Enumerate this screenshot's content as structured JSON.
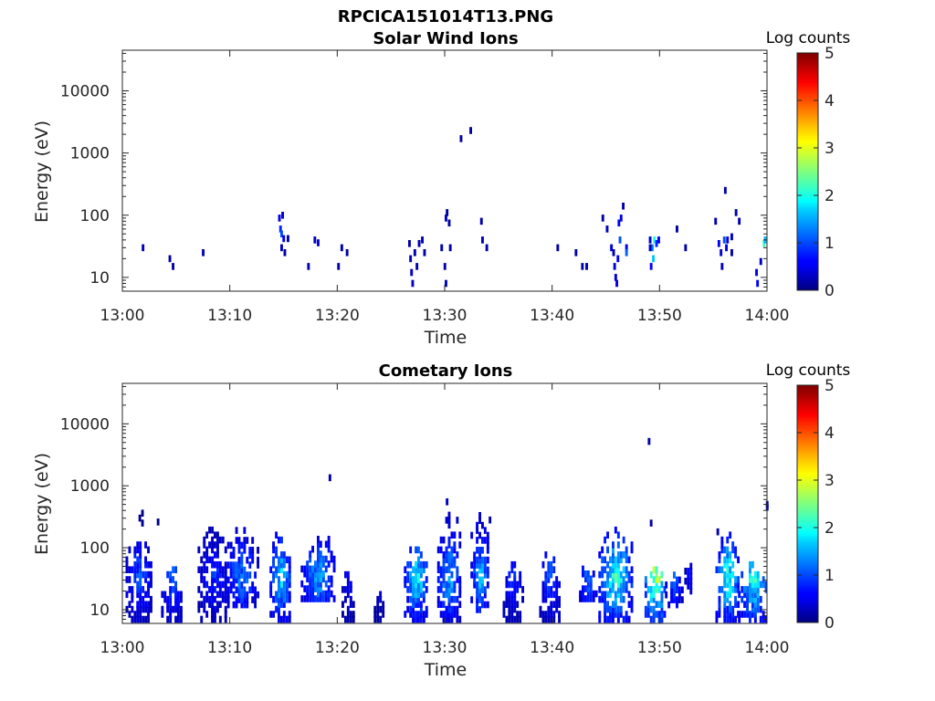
{
  "figure": {
    "title": "RPCICA151014T13.PNG"
  },
  "chart_data": [
    {
      "type": "heatmap",
      "title": "Solar Wind Ions",
      "xlabel": "Time",
      "ylabel": "Energy (eV)",
      "x_ticks": [
        "13:00",
        "13:10",
        "13:20",
        "13:30",
        "13:40",
        "13:50",
        "14:00"
      ],
      "y_ticks": [
        "10",
        "100",
        "1000",
        "10000"
      ],
      "yscale": "log",
      "ylim": [
        6,
        45000
      ],
      "xlim_minutes": [
        0,
        60
      ],
      "colorbar": {
        "label": "Log counts",
        "ticks": [
          "0",
          "1",
          "2",
          "3",
          "4",
          "5"
        ],
        "range": [
          0,
          5
        ],
        "colormap": "jet"
      },
      "points": [
        [
          1.8,
          30,
          0.3
        ],
        [
          4.3,
          20,
          0.2
        ],
        [
          4.6,
          15,
          0.2
        ],
        [
          7.4,
          25,
          0.3
        ],
        [
          14.5,
          90,
          0.5
        ],
        [
          14.6,
          60,
          0.8
        ],
        [
          14.7,
          50,
          1.0
        ],
        [
          14.8,
          100,
          0.4
        ],
        [
          14.9,
          42,
          0.5
        ],
        [
          14.7,
          30,
          0.3
        ],
        [
          15.0,
          25,
          0.2
        ],
        [
          15.3,
          42,
          0.2
        ],
        [
          17.2,
          15,
          0.2
        ],
        [
          17.8,
          40,
          0.3
        ],
        [
          18.1,
          36,
          0.4
        ],
        [
          20.0,
          15,
          0.2
        ],
        [
          20.3,
          30,
          0.2
        ],
        [
          20.8,
          25,
          0.2
        ],
        [
          26.6,
          35,
          0.2
        ],
        [
          26.7,
          20,
          0.3
        ],
        [
          26.8,
          12,
          0.3
        ],
        [
          26.9,
          8,
          0.3
        ],
        [
          27.1,
          25,
          0.2
        ],
        [
          27.3,
          15,
          0.2
        ],
        [
          27.5,
          35,
          0.2
        ],
        [
          27.8,
          40,
          0.3
        ],
        [
          28.0,
          25,
          0.2
        ],
        [
          29.6,
          30,
          0.2
        ],
        [
          29.9,
          15,
          0.2
        ],
        [
          30.0,
          8,
          0.3
        ],
        [
          30.0,
          90,
          0.3
        ],
        [
          30.1,
          110,
          0.2
        ],
        [
          30.3,
          75,
          0.2
        ],
        [
          30.4,
          30,
          0.2
        ],
        [
          31.4,
          1700,
          0.2
        ],
        [
          32.3,
          2300,
          0.2
        ],
        [
          33.3,
          80,
          0.2
        ],
        [
          33.4,
          40,
          0.3
        ],
        [
          33.8,
          30,
          0.2
        ],
        [
          40.4,
          30,
          0.2
        ],
        [
          42.1,
          25,
          0.2
        ],
        [
          42.7,
          15,
          0.2
        ],
        [
          43.1,
          15,
          0.2
        ],
        [
          44.6,
          90,
          0.2
        ],
        [
          45.0,
          60,
          0.3
        ],
        [
          45.4,
          30,
          0.4
        ],
        [
          45.6,
          25,
          0.2
        ],
        [
          45.7,
          15,
          0.4
        ],
        [
          45.8,
          10,
          0.4
        ],
        [
          45.9,
          8,
          0.5
        ],
        [
          46.0,
          20,
          0.6
        ],
        [
          46.2,
          40,
          1.0
        ],
        [
          46.1,
          75,
          0.6
        ],
        [
          46.3,
          90,
          0.5
        ],
        [
          46.5,
          140,
          0.2
        ],
        [
          46.8,
          30,
          0.5
        ],
        [
          46.8,
          25,
          1.1
        ],
        [
          49.0,
          40,
          0.4
        ],
        [
          49.2,
          30,
          1.2
        ],
        [
          49.3,
          20,
          1.6
        ],
        [
          49.4,
          40,
          2.0
        ],
        [
          49.6,
          35,
          0.8
        ],
        [
          49.8,
          40,
          0.6
        ],
        [
          49.1,
          15,
          0.6
        ],
        [
          49.0,
          30,
          0.3
        ],
        [
          51.5,
          60,
          0.2
        ],
        [
          52.3,
          30,
          0.2
        ],
        [
          55.1,
          80,
          0.2
        ],
        [
          55.4,
          35,
          0.6
        ],
        [
          55.6,
          25,
          0.4
        ],
        [
          55.7,
          15,
          0.3
        ],
        [
          55.9,
          40,
          1.0
        ],
        [
          56.1,
          30,
          0.5
        ],
        [
          56.2,
          40,
          0.4
        ],
        [
          56.0,
          250,
          0.2
        ],
        [
          56.6,
          45,
          0.4
        ],
        [
          56.6,
          25,
          0.2
        ],
        [
          57.0,
          110,
          0.2
        ],
        [
          57.3,
          80,
          0.2
        ],
        [
          58.9,
          12,
          0.5
        ],
        [
          59.0,
          8,
          0.6
        ],
        [
          59.3,
          18,
          0.3
        ],
        [
          59.6,
          35,
          2.2
        ],
        [
          59.7,
          40,
          1.5
        ]
      ]
    },
    {
      "type": "heatmap",
      "title": "Cometary Ions",
      "xlabel": "Time",
      "ylabel": "Energy (eV)",
      "x_ticks": [
        "13:00",
        "13:10",
        "13:20",
        "13:30",
        "13:40",
        "13:50",
        "14:00"
      ],
      "y_ticks": [
        "10",
        "100",
        "1000",
        "10000"
      ],
      "yscale": "log",
      "ylim": [
        6,
        45000
      ],
      "xlim_minutes": [
        0,
        60
      ],
      "colorbar": {
        "label": "Log counts",
        "ticks": [
          "0",
          "1",
          "2",
          "3",
          "4",
          "5"
        ],
        "range": [
          0,
          5
        ],
        "colormap": "jet"
      },
      "bursts": [
        {
          "t": [
            0.3,
            2.6
          ],
          "e": [
            7,
            150
          ],
          "peak": 1.2
        },
        {
          "t": [
            1.5,
            1.9
          ],
          "e": [
            250,
            400
          ],
          "peak": 0.3
        },
        {
          "t": [
            3.2,
            3.5
          ],
          "e": [
            260,
            330
          ],
          "peak": 0.3
        },
        {
          "t": [
            3.6,
            5.5
          ],
          "e": [
            7,
            45
          ],
          "peak": 1.4
        },
        {
          "t": [
            7.0,
            9.7
          ],
          "e": [
            7,
            200
          ],
          "peak": 1.0
        },
        {
          "t": [
            9.5,
            12.5
          ],
          "e": [
            12,
            200
          ],
          "peak": 1.4
        },
        {
          "t": [
            13.7,
            15.6
          ],
          "e": [
            7,
            180
          ],
          "peak": 2.0
        },
        {
          "t": [
            16.6,
            19.8
          ],
          "e": [
            15,
            150
          ],
          "peak": 1.6
        },
        {
          "t": [
            20.4,
            21.5
          ],
          "e": [
            7,
            40
          ],
          "peak": 0.7
        },
        {
          "t": [
            23.4,
            24.3
          ],
          "e": [
            7,
            18
          ],
          "peak": 0.6
        },
        {
          "t": [
            26.2,
            28.4
          ],
          "e": [
            7,
            100
          ],
          "peak": 2.1
        },
        {
          "t": [
            29.3,
            31.3
          ],
          "e": [
            7,
            400
          ],
          "peak": 1.8
        },
        {
          "t": [
            32.4,
            34.0
          ],
          "e": [
            10,
            350
          ],
          "peak": 1.8
        },
        {
          "t": [
            35.4,
            37.2
          ],
          "e": [
            7,
            60
          ],
          "peak": 1.0
        },
        {
          "t": [
            38.8,
            40.6
          ],
          "e": [
            7,
            80
          ],
          "peak": 1.2
        },
        {
          "t": [
            42.5,
            44.0
          ],
          "e": [
            15,
            50
          ],
          "peak": 1.3
        },
        {
          "t": [
            44.3,
            47.3
          ],
          "e": [
            7,
            200
          ],
          "peak": 2.4
        },
        {
          "t": [
            48.6,
            50.5
          ],
          "e": [
            7,
            70
          ],
          "peak": 3.2
        },
        {
          "t": [
            50.5,
            52.0
          ],
          "e": [
            12,
            40
          ],
          "peak": 1.3
        },
        {
          "t": [
            52.3,
            53.0
          ],
          "e": [
            20,
            90
          ],
          "peak": 0.8
        },
        {
          "t": [
            55.2,
            57.3
          ],
          "e": [
            7,
            180
          ],
          "peak": 2.3
        },
        {
          "t": [
            57.3,
            60.0
          ],
          "e": [
            7,
            60
          ],
          "peak": 2.4
        }
      ],
      "points": [
        [
          19.2,
          1350,
          0.2
        ],
        [
          48.9,
          5200,
          0.2
        ],
        [
          49.1,
          250,
          0.2
        ],
        [
          59.9,
          500,
          0.2
        ],
        [
          59.9,
          450,
          0.2
        ],
        [
          30.1,
          550,
          0.3
        ],
        [
          34.1,
          280,
          0.2
        ],
        [
          55.3,
          180,
          0.2
        ]
      ]
    }
  ]
}
